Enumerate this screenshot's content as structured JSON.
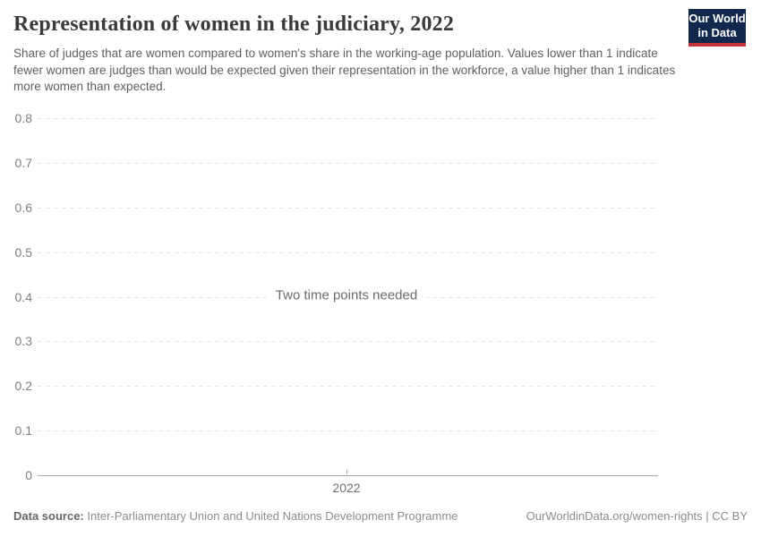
{
  "header": {
    "title": "Representation of women in the judiciary, 2022",
    "subtitle": "Share of judges that are women compared to women's share in the working-age population. Values lower than 1 indicate fewer women are judges than would be expected given their representation in the workforce, a value higher than 1 indicates more women than expected.",
    "logo": {
      "line1": "Our World",
      "line2": "in Data"
    }
  },
  "colors": {
    "logo_background": "#12294d",
    "logo_accent": "#c0333b",
    "gridline": "#e4e4e4",
    "axis_line": "#a8a8a8",
    "text_muted": "#8c8c8c"
  },
  "chart_data": {
    "type": "line",
    "title": "Representation of women in the judiciary, 2022",
    "message": "Two time points needed",
    "series": [],
    "categories": [
      "2022"
    ],
    "x_ticks": [
      "2022"
    ],
    "y_ticks": [
      {
        "value": 0,
        "label": "0"
      },
      {
        "value": 0.1,
        "label": "0.1"
      },
      {
        "value": 0.2,
        "label": "0.2"
      },
      {
        "value": 0.3,
        "label": "0.3"
      },
      {
        "value": 0.4,
        "label": "0.4"
      },
      {
        "value": 0.5,
        "label": "0.5"
      },
      {
        "value": 0.6,
        "label": "0.6"
      },
      {
        "value": 0.7,
        "label": "0.7"
      },
      {
        "value": 0.8,
        "label": "0.8"
      }
    ],
    "ylim": [
      0,
      0.8
    ],
    "grid": "horizontal-dashed",
    "legend_position": "none"
  },
  "footer": {
    "data_source_label": "Data source:",
    "data_source_value": "Inter-Parliamentary Union and United Nations Development Programme",
    "attribution_url": "OurWorldinData.org/women-rights",
    "separator": " | ",
    "license": "CC BY"
  }
}
